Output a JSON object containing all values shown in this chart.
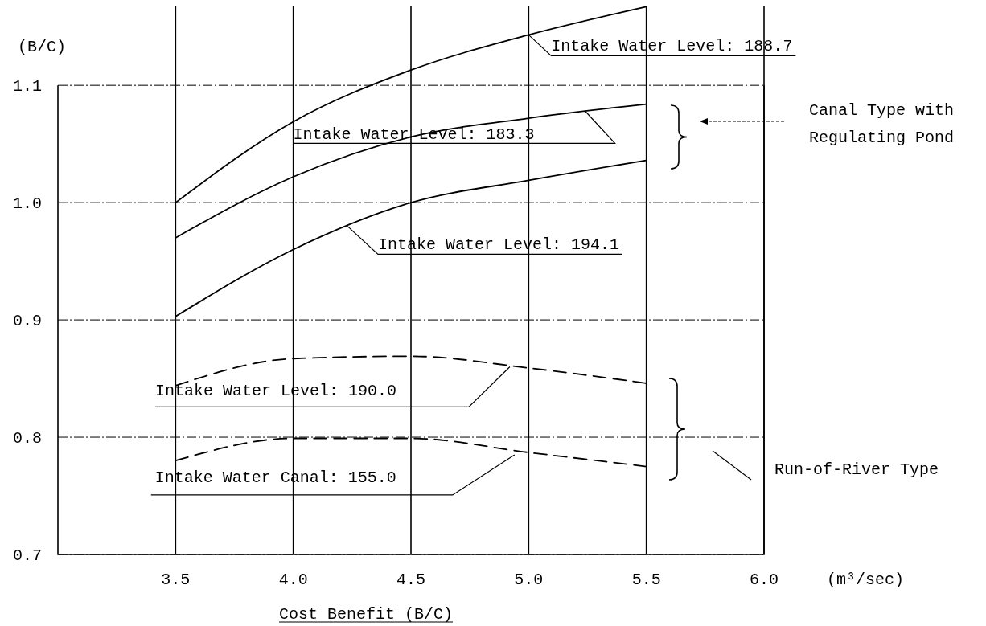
{
  "chart_data": {
    "type": "line",
    "ylabel": "(B/C)",
    "xlabel": "Cost Benefit (B/C)",
    "x": [
      3.5,
      4.0,
      4.5,
      5.0,
      5.5
    ],
    "series": [
      {
        "color": "#000000",
        "line_style": "solid",
        "values": [
          1.0,
          1.069,
          1.113,
          1.143,
          1.167
        ]
      },
      {
        "color": "#000000",
        "line_style": "solid",
        "values": [
          0.97,
          1.022,
          1.056,
          1.072,
          1.084
        ]
      },
      {
        "color": "#000000",
        "line_style": "solid",
        "values": [
          0.903,
          0.96,
          1.0,
          1.019,
          1.036
        ]
      },
      {
        "color": "#000000",
        "line_style": "dashed",
        "values": [
          0.844,
          0.867,
          0.869,
          0.859,
          0.846
        ]
      },
      {
        "color": "#000000",
        "line_style": "dashed",
        "values": [
          0.78,
          0.799,
          0.799,
          0.787,
          0.775
        ]
      }
    ],
    "xlim": [
      3.0,
      6.0
    ],
    "xticks": [
      3.5,
      {
        "value": 4,
        "label": "4.0"
      },
      4.5,
      {
        "value": 5,
        "label": "5.0"
      },
      5.5,
      {
        "value": 6,
        "label": "6.0"
      }
    ],
    "ylim": [
      0.7,
      1.17
    ],
    "yticks": [
      0.7,
      0.8,
      0.9,
      {
        "value": 1,
        "label": "1.0"
      },
      1.1
    ],
    "grid": true,
    "annotations": [
      {
        "text": "Intake Water Level: 188.7",
        "x": 5.0,
        "y": 1.143
      },
      {
        "text": "Intake Water Level: 183.3",
        "x": 5.24,
        "y": 1.078
      },
      {
        "text": "Intake Water Level: 194.1",
        "x": 4.23,
        "y": 0.98
      },
      {
        "text": "Intake Water Level: 190.0",
        "x": 4.92,
        "y": 0.86
      },
      {
        "text": "Intake Water Canal: 155.0",
        "x": 4.94,
        "y": 0.785
      },
      "Canal Type with\nRegulating Pond",
      "Run-of-River Type",
      "(m³/sec)"
    ]
  }
}
